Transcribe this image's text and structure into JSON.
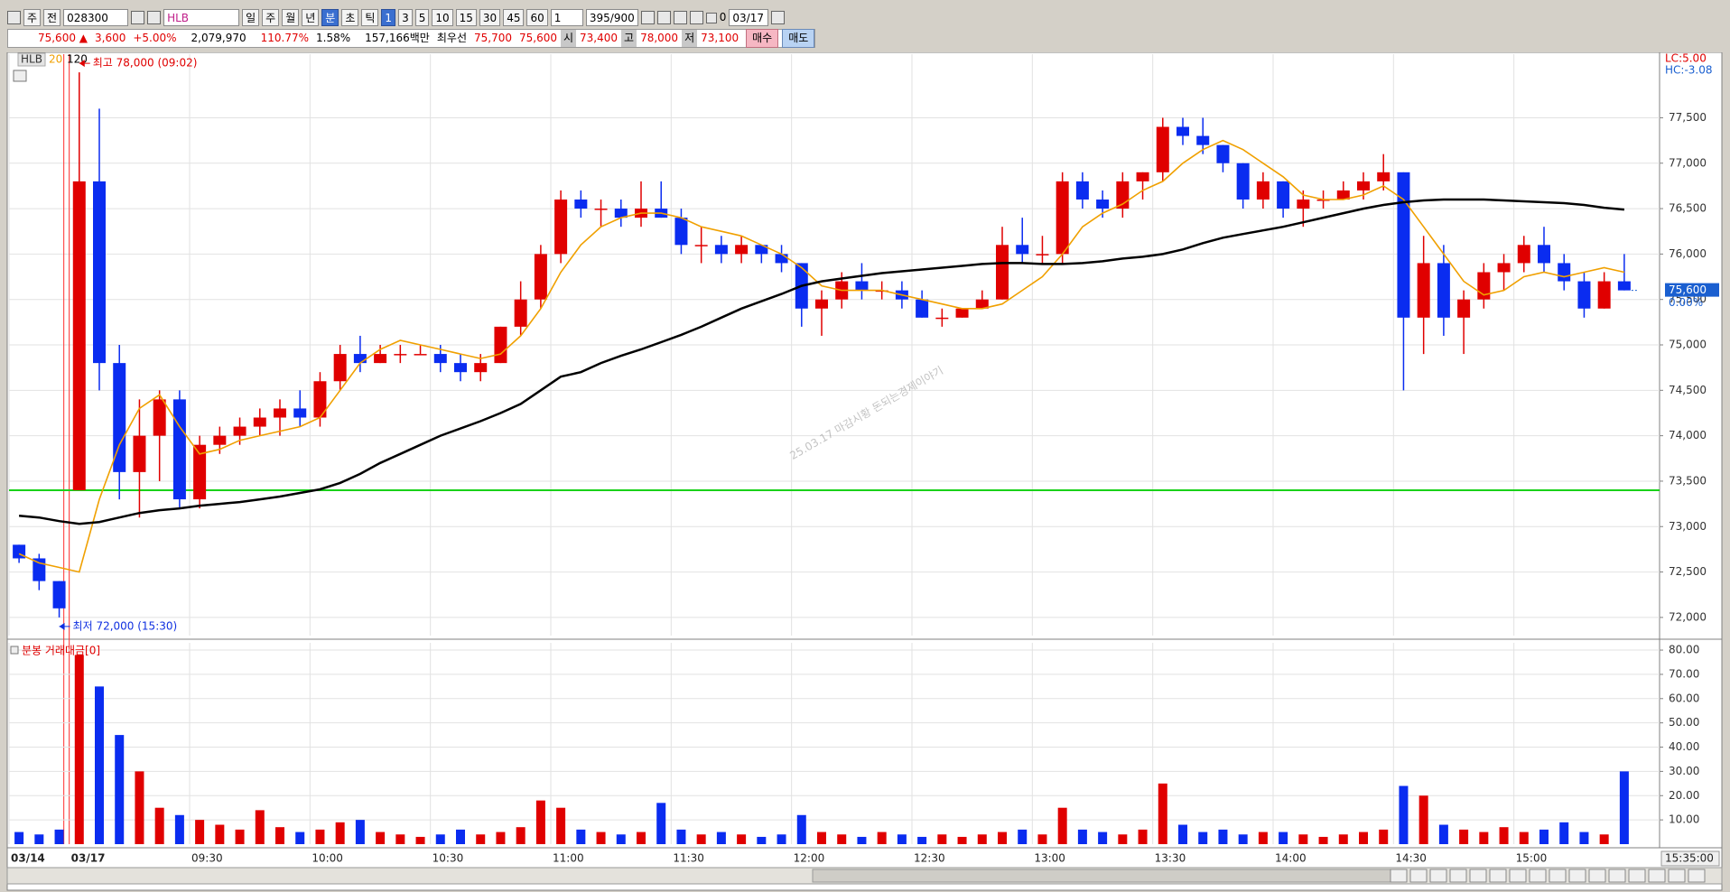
{
  "toolbar": {
    "row1": [
      "주",
      "전",
      "028300",
      "HLB",
      "일",
      "주",
      "월",
      "년",
      "분",
      "초",
      "틱",
      "1",
      "3",
      "5",
      "10",
      "15",
      "30",
      "45",
      "60",
      "1",
      "395/900",
      "0",
      "03/17"
    ]
  },
  "quote": {
    "row2": [
      "75,600 ▲",
      "3,600",
      "+5.00%",
      "2,079,970",
      "110.77%",
      "1.58%",
      "157,166백만",
      "최우선",
      "75,700",
      "75,600",
      "시",
      "73,400",
      "고",
      "78,000",
      "저",
      "73,100",
      "매수",
      "매도"
    ]
  },
  "chart_data": [
    {
      "type": "candlestick",
      "legend": [
        "HLB",
        "20",
        "120"
      ],
      "categories": [
        null,
        null,
        null,
        null,
        null,
        null,
        null,
        null,
        null,
        null,
        null,
        null,
        null,
        null,
        null,
        null,
        null,
        null,
        null,
        null,
        null,
        null,
        null,
        null,
        null,
        null,
        null,
        null,
        null,
        null,
        null,
        null,
        null,
        null,
        null,
        null,
        null,
        null,
        null,
        null,
        null,
        null,
        null,
        null,
        null,
        null,
        null,
        null,
        null,
        null,
        null,
        null,
        null,
        null,
        null,
        null,
        null,
        null,
        null,
        null,
        null,
        null,
        null,
        null,
        null,
        null,
        null,
        null,
        null,
        null,
        null,
        null,
        null,
        null,
        null,
        null,
        null,
        null,
        null,
        null,
        null
      ],
      "candles": {
        "name": "HLB",
        "up_color": "#e00000",
        "down_color": "#0a2cf0",
        "open": [
          72800,
          72650,
          72400,
          73400,
          76800,
          74800,
          73600,
          74000,
          74400,
          73300,
          73900,
          74000,
          74100,
          74200,
          74300,
          74200,
          74600,
          74900,
          74800,
          74900,
          74900,
          74900,
          74800,
          74700,
          74800,
          75200,
          75500,
          76000,
          76600,
          76500,
          76500,
          76400,
          76500,
          76400,
          76100,
          76100,
          76000,
          76100,
          76000,
          75900,
          75400,
          75500,
          75700,
          75600,
          75600,
          75500,
          75300,
          75300,
          75400,
          75500,
          76100,
          76000,
          76000,
          76800,
          76600,
          76500,
          76800,
          76900,
          77400,
          77300,
          77200,
          77000,
          76600,
          76800,
          76500,
          76600,
          76600,
          76700,
          76800,
          76900,
          75300,
          75900,
          75300,
          75500,
          75800,
          75900,
          76100,
          75900,
          75700,
          75400,
          75700
        ],
        "high": [
          72800,
          72700,
          72400,
          78000,
          77600,
          75000,
          74400,
          74500,
          74500,
          74000,
          74100,
          74200,
          74300,
          74400,
          74500,
          74700,
          75000,
          75100,
          75000,
          75000,
          75000,
          75000,
          74900,
          74900,
          75200,
          75700,
          76100,
          76700,
          76700,
          76600,
          76600,
          76800,
          76800,
          76500,
          76300,
          76200,
          76200,
          76100,
          76100,
          75900,
          75600,
          75800,
          75900,
          75700,
          75700,
          75600,
          75400,
          75400,
          75600,
          76300,
          76400,
          76200,
          76900,
          76900,
          76700,
          76900,
          76900,
          77500,
          77500,
          77500,
          77200,
          77000,
          76900,
          76800,
          76700,
          76700,
          76800,
          76900,
          77100,
          76900,
          76200,
          76100,
          75600,
          75900,
          76000,
          76200,
          76300,
          76000,
          75800,
          75800,
          76000
        ],
        "low": [
          72600,
          72300,
          72000,
          73400,
          74500,
          73300,
          73100,
          73500,
          73200,
          73200,
          73800,
          73900,
          74000,
          74000,
          74100,
          74100,
          74500,
          74700,
          74800,
          74800,
          74900,
          74700,
          74600,
          74600,
          74800,
          75100,
          75400,
          75900,
          76400,
          76300,
          76300,
          76300,
          76400,
          76000,
          75900,
          75900,
          75900,
          75900,
          75800,
          75200,
          75100,
          75400,
          75500,
          75500,
          75400,
          75300,
          75200,
          75300,
          75400,
          75500,
          75900,
          75900,
          75900,
          76500,
          76400,
          76400,
          76600,
          76800,
          77200,
          77100,
          76900,
          76500,
          76500,
          76400,
          76300,
          76500,
          76600,
          76600,
          76700,
          74500,
          74900,
          75100,
          74900,
          75400,
          75600,
          75800,
          75800,
          75600,
          75300,
          75400,
          75600
        ],
        "close": [
          72650,
          72400,
          72100,
          76800,
          74800,
          73600,
          74000,
          74400,
          73300,
          73900,
          74000,
          74100,
          74200,
          74300,
          74200,
          74600,
          74900,
          74800,
          74900,
          74900,
          74900,
          74800,
          74700,
          74800,
          75200,
          75500,
          76000,
          76600,
          76500,
          76500,
          76400,
          76500,
          76400,
          76100,
          76100,
          76000,
          76100,
          76000,
          75900,
          75400,
          75500,
          75700,
          75600,
          75600,
          75500,
          75300,
          75300,
          75400,
          75500,
          76100,
          76000,
          76000,
          76800,
          76600,
          76500,
          76800,
          76900,
          77400,
          77300,
          77200,
          77000,
          76600,
          76800,
          76500,
          76600,
          76600,
          76700,
          76800,
          76900,
          75300,
          75900,
          75300,
          75500,
          75800,
          75900,
          76100,
          75900,
          75700,
          75400,
          75700,
          75600
        ]
      },
      "series": [
        {
          "name": "20",
          "color": "#f0a000",
          "values": [
            72700,
            72600,
            72550,
            72500,
            73300,
            73900,
            74300,
            74450,
            74100,
            73800,
            73850,
            73950,
            74000,
            74050,
            74100,
            74200,
            74500,
            74800,
            74950,
            75050,
            75000,
            74950,
            74900,
            74850,
            74900,
            75100,
            75400,
            75800,
            76100,
            76300,
            76400,
            76450,
            76450,
            76400,
            76300,
            76250,
            76200,
            76100,
            76000,
            75850,
            75650,
            75600,
            75600,
            75600,
            75550,
            75500,
            75450,
            75400,
            75400,
            75450,
            75600,
            75750,
            76000,
            76300,
            76450,
            76550,
            76700,
            76800,
            77000,
            77150,
            77250,
            77150,
            77000,
            76850,
            76650,
            76600,
            76600,
            76650,
            76750,
            76600,
            76300,
            76000,
            75700,
            75550,
            75600,
            75750,
            75800,
            75750,
            75800,
            75850,
            75800
          ]
        },
        {
          "name": "120",
          "color": "#000000",
          "values": [
            73120,
            73100,
            73060,
            73030,
            73050,
            73100,
            73150,
            73180,
            73200,
            73230,
            73250,
            73270,
            73300,
            73330,
            73370,
            73410,
            73480,
            73580,
            73700,
            73800,
            73900,
            74000,
            74080,
            74160,
            74250,
            74350,
            74500,
            74650,
            74700,
            74800,
            74880,
            74950,
            75030,
            75110,
            75200,
            75300,
            75400,
            75480,
            75560,
            75650,
            75700,
            75730,
            75760,
            75790,
            75810,
            75830,
            75850,
            75870,
            75890,
            75900,
            75900,
            75890,
            75890,
            75900,
            75920,
            75950,
            75970,
            76000,
            76050,
            76120,
            76180,
            76220,
            76260,
            76300,
            76350,
            76400,
            76450,
            76500,
            76540,
            76570,
            76590,
            76600,
            76600,
            76600,
            76590,
            76580,
            76570,
            76560,
            76540,
            76510,
            76490
          ]
        }
      ],
      "xticks": [
        {
          "value": 0,
          "label": "03/14"
        },
        {
          "value": 3,
          "label": "03/17"
        },
        {
          "value": 9,
          "label": "09:30"
        },
        {
          "value": 15,
          "label": "10:00"
        },
        {
          "value": 21,
          "label": "10:30"
        },
        {
          "value": 27,
          "label": "11:00"
        },
        {
          "value": 33,
          "label": "11:30"
        },
        {
          "value": 39,
          "label": "12:00"
        },
        {
          "value": 45,
          "label": "12:30"
        },
        {
          "value": 51,
          "label": "13:00"
        },
        {
          "value": 57,
          "label": "13:30"
        },
        {
          "value": 63,
          "label": "14:00"
        },
        {
          "value": 69,
          "label": "14:30"
        },
        {
          "value": 75,
          "label": "15:00"
        }
      ],
      "ylim": [
        71800,
        78200
      ],
      "yticks": [
        {
          "value": 72000,
          "label": "72,000"
        },
        {
          "value": 72500,
          "label": "72,500"
        },
        {
          "value": 73000,
          "label": "73,000"
        },
        {
          "value": 73500,
          "label": "73,500"
        },
        {
          "value": 74000,
          "label": "74,000"
        },
        {
          "value": 74500,
          "label": "74,500"
        },
        {
          "value": 75000,
          "label": "75,000"
        },
        {
          "value": 75500,
          "label": "75,500"
        },
        {
          "value": 76000,
          "label": "76,000"
        },
        {
          "value": 76500,
          "label": "76,500"
        },
        {
          "value": 77000,
          "label": "77,000"
        },
        {
          "value": 77500,
          "label": "77,500"
        }
      ],
      "grid": true,
      "session_color": "#ff3030",
      "hline": {
        "value": 73400,
        "color": "#19d119"
      },
      "annotations": [
        {
          "text": "최고 78,000 (09:02)",
          "value": 78000,
          "color": "#e00000"
        },
        {
          "text": "최저 72,000 (15:30)",
          "value": 72000,
          "color": "#1030e0"
        }
      ],
      "last_price": {
        "value": 75600,
        "label": "75,600"
      },
      "change_label": "0.00%",
      "lc_label": "LC:5.00",
      "hc_label": "HC:-3.08",
      "watermark": "25.03.17 마감시황 돈되는경제이야기",
      "cursor_time": "15:35:00"
    },
    {
      "type": "bar",
      "title": "분봉 거래대금[0]",
      "values": [
        5,
        4,
        6,
        78,
        65,
        45,
        30,
        15,
        12,
        10,
        8,
        6,
        14,
        7,
        5,
        6,
        9,
        10,
        5,
        4,
        3,
        4,
        6,
        4,
        5,
        7,
        18,
        15,
        6,
        5,
        4,
        5,
        17,
        6,
        4,
        5,
        4,
        3,
        4,
        12,
        5,
        4,
        3,
        5,
        4,
        3,
        4,
        3,
        4,
        5,
        6,
        4,
        15,
        6,
        5,
        4,
        6,
        25,
        8,
        5,
        6,
        4,
        5,
        5,
        4,
        3,
        4,
        5,
        6,
        24,
        20,
        8,
        6,
        5,
        7,
        5,
        6,
        9,
        5,
        4,
        30
      ],
      "ylim": [
        0,
        83
      ],
      "yticks": [
        {
          "value": 10,
          "label": "10.00"
        },
        {
          "value": 20,
          "label": "20.00"
        },
        {
          "value": 30,
          "label": "30.00"
        },
        {
          "value": 40,
          "label": "40.00"
        },
        {
          "value": 50,
          "label": "50.00"
        },
        {
          "value": 60,
          "label": "60.00"
        },
        {
          "value": 70,
          "label": "70.00"
        },
        {
          "value": 80,
          "label": "80.00"
        }
      ],
      "grid": true
    }
  ]
}
